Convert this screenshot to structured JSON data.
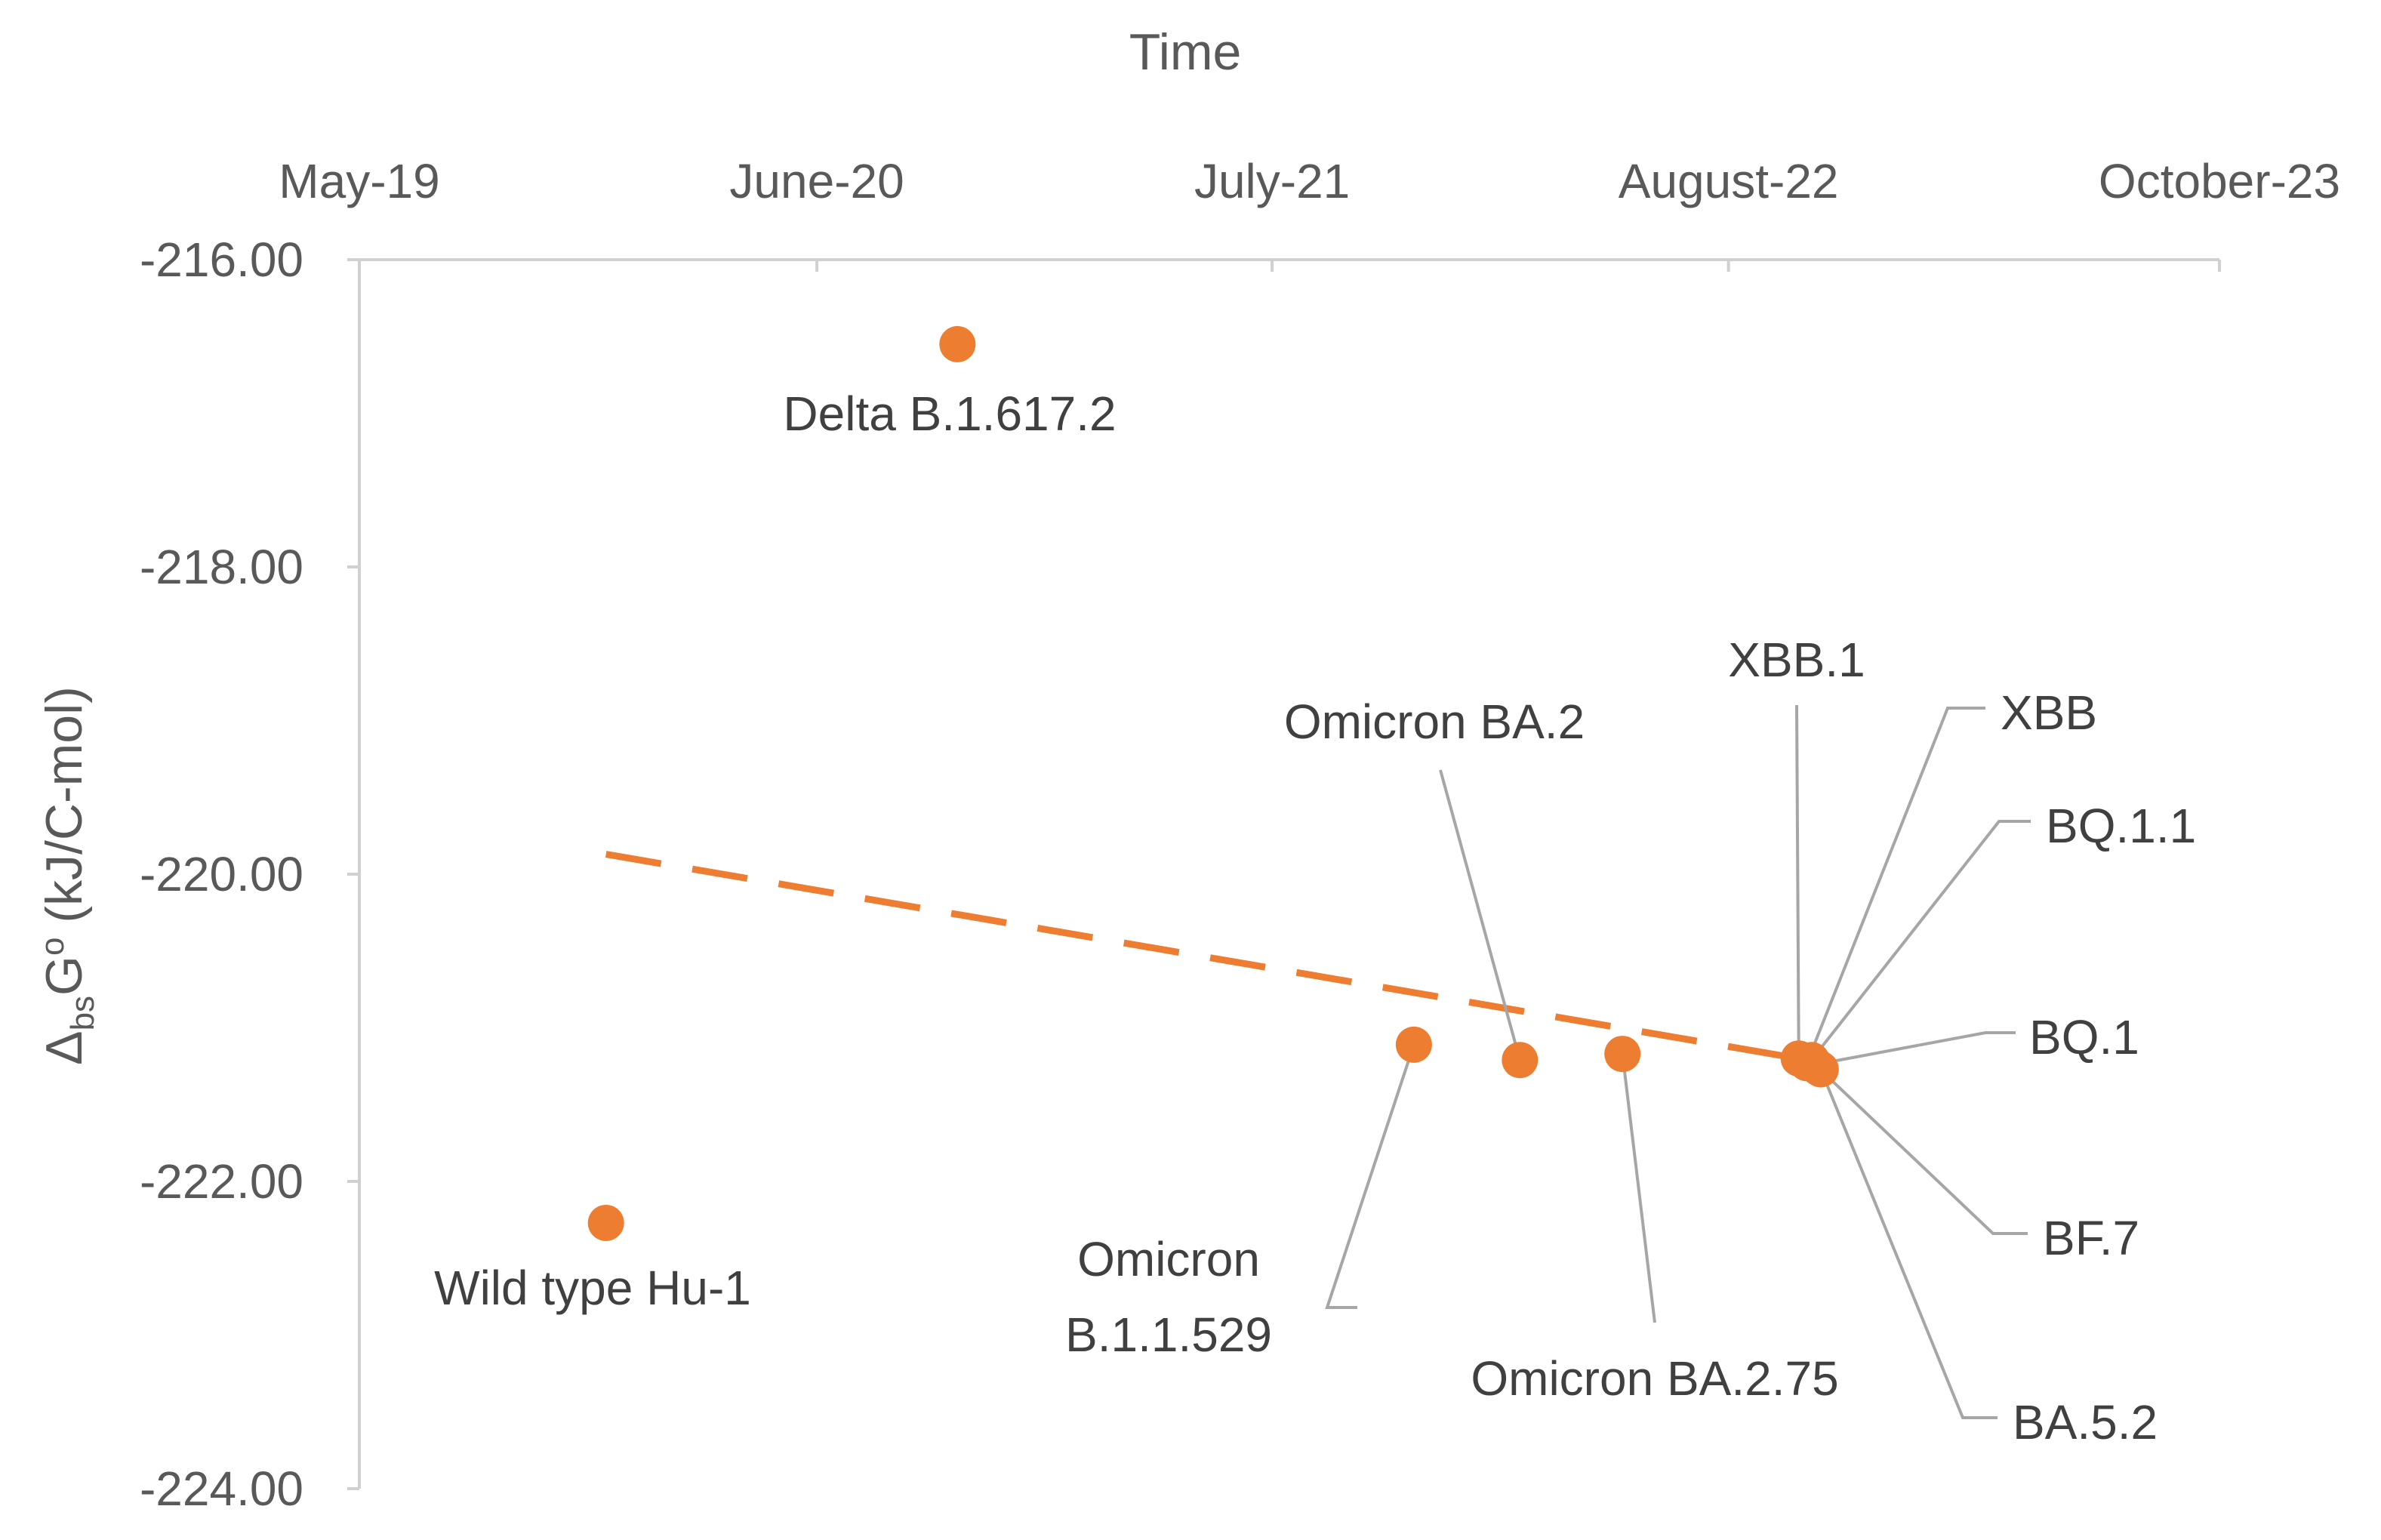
{
  "chart_data": {
    "type": "scatter",
    "title": "",
    "xlabel": "Time",
    "ylabel": {
      "prefix": "Δ",
      "sub": "bs",
      "mid": "G",
      "sup": "o",
      "suffix": " (kJ/C-mol)"
    },
    "x_axis_position": "top",
    "xlim": [
      "2019-05-01",
      "2023-10-01"
    ],
    "x_ticks": [
      {
        "date": "2019-05-01",
        "label": "May-19"
      },
      {
        "date": "2020-06-01",
        "label": "June-20"
      },
      {
        "date": "2021-07-01",
        "label": "July-21"
      },
      {
        "date": "2022-08-01",
        "label": "August-22"
      },
      {
        "date": "2023-10-01",
        "label": "October-23"
      }
    ],
    "ylim": [
      -224,
      -216
    ],
    "y_ticks": [
      {
        "value": -216,
        "label": "-216.00"
      },
      {
        "value": -218,
        "label": "-218.00"
      },
      {
        "value": -220,
        "label": "-220.00"
      },
      {
        "value": -222,
        "label": "-222.00"
      },
      {
        "value": -224,
        "label": "-224.00"
      }
    ],
    "grid": false,
    "marker_color": "#ED7D31",
    "points": [
      {
        "label": [
          "Wild type Hu-1"
        ],
        "date": "2019-12-01",
        "y": -222.27
      },
      {
        "label": [
          "Delta B.1.617.2"
        ],
        "date": "2020-10-01",
        "y": -216.55
      },
      {
        "label": [
          "Omicron",
          "B.1.1.529"
        ],
        "date": "2021-11-01",
        "y": -221.11
      },
      {
        "label": [
          "Omicron BA.2"
        ],
        "date": "2022-02-01",
        "y": -221.21
      },
      {
        "label": [
          "Omicron BA.2.75"
        ],
        "date": "2022-05-01",
        "y": -221.17
      },
      {
        "label": [
          "XBB.1"
        ],
        "date": "2022-10-01",
        "y": -221.2
      },
      {
        "label": [
          "XBB"
        ],
        "date": "2022-10-08",
        "y": -221.23
      },
      {
        "label": [
          "BQ.1.1"
        ],
        "date": "2022-10-12",
        "y": -221.21
      },
      {
        "label": [
          "BQ.1"
        ],
        "date": "2022-10-15",
        "y": -221.24
      },
      {
        "label": [
          "BF.7"
        ],
        "date": "2022-10-18",
        "y": -221.26
      },
      {
        "label": [
          "BA.5.2"
        ],
        "date": "2022-10-20",
        "y": -221.27
      }
    ],
    "trendline": {
      "style": "dashed",
      "color": "#ED7D31",
      "start": {
        "date": "2019-12-01",
        "y": -219.87
      },
      "end": {
        "date": "2022-10-01",
        "y": -221.2
      }
    }
  }
}
